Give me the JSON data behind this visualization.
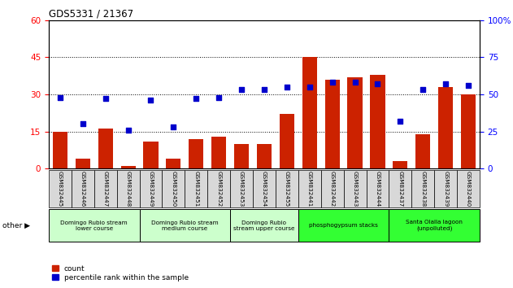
{
  "title": "GDS5331 / 21367",
  "samples": [
    "GSM832445",
    "GSM832446",
    "GSM832447",
    "GSM832448",
    "GSM832449",
    "GSM832450",
    "GSM832451",
    "GSM832452",
    "GSM832453",
    "GSM832454",
    "GSM832455",
    "GSM832441",
    "GSM832442",
    "GSM832443",
    "GSM832444",
    "GSM832437",
    "GSM832438",
    "GSM832439",
    "GSM832440"
  ],
  "counts": [
    15,
    4,
    16,
    1,
    11,
    4,
    12,
    13,
    10,
    10,
    22,
    45,
    36,
    37,
    38,
    3,
    14,
    33,
    30
  ],
  "percentiles": [
    48,
    30,
    47,
    26,
    46,
    28,
    47,
    48,
    53,
    53,
    55,
    55,
    58,
    58,
    57,
    32,
    53,
    57,
    56
  ],
  "groups": [
    {
      "label": "Domingo Rubio stream\nlower course",
      "start": 0,
      "end": 4,
      "color": "#ccffcc"
    },
    {
      "label": "Domingo Rubio stream\nmedium course",
      "start": 4,
      "end": 8,
      "color": "#ccffcc"
    },
    {
      "label": "Domingo Rubio\nstream upper course",
      "start": 8,
      "end": 11,
      "color": "#ccffcc"
    },
    {
      "label": "phosphogypsum stacks",
      "start": 11,
      "end": 15,
      "color": "#33ff33"
    },
    {
      "label": "Santa Olalla lagoon\n(unpolluted)",
      "start": 15,
      "end": 19,
      "color": "#33ff33"
    }
  ],
  "bar_color": "#cc2200",
  "dot_color": "#0000cc",
  "ylim_left": [
    0,
    60
  ],
  "ylim_right": [
    0,
    100
  ],
  "yticks_left": [
    0,
    15,
    30,
    45,
    60
  ],
  "yticks_right": [
    0,
    25,
    50,
    75,
    100
  ],
  "ytick_labels_right": [
    "0",
    "25",
    "50",
    "75",
    "100%"
  ],
  "tick_label_bg": "#d8d8d8",
  "other_label": "other ▶"
}
